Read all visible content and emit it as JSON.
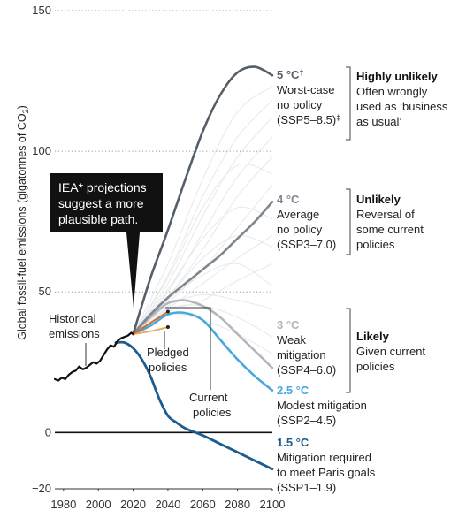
{
  "chart_data": {
    "type": "line",
    "title": "",
    "xlabel": "",
    "ylabel": "Global fossil-fuel emissions (gigatonnes of CO",
    "ylabel_sub": "2",
    "ylabel_close": ")",
    "xlim": [
      1975,
      2100
    ],
    "ylim": [
      -20,
      150
    ],
    "x_ticks": [
      1980,
      2000,
      2020,
      2040,
      2060,
      2080,
      2100
    ],
    "x_tick_labels": [
      "1980",
      "2000",
      "2020",
      "2040",
      "2060",
      "2080",
      "2100"
    ],
    "y_ticks": [
      150,
      100,
      50,
      0,
      -20
    ],
    "y_tick_labels": [
      "150",
      "100",
      "50",
      "0",
      "−20"
    ],
    "grid": "dotted horizontal",
    "series": [
      {
        "key": "historical",
        "color": "#111111",
        "x": [
          1975,
          1977,
          1979,
          1981,
          1983,
          1985,
          1987,
          1989,
          1991,
          1993,
          1995,
          1997,
          1999,
          2001,
          2003,
          2005,
          2007,
          2009,
          2011,
          2013,
          2015,
          2017,
          2019,
          2020
        ],
        "y": [
          19,
          18.5,
          19.5,
          19,
          20.5,
          21.5,
          22,
          23.5,
          22.5,
          23,
          24,
          25,
          24.5,
          25.5,
          27.5,
          29.5,
          31,
          30.5,
          32.5,
          33.5,
          34,
          34.5,
          35.5,
          35
        ]
      },
      {
        "key": "ssp585",
        "color": "#555e69",
        "x": [
          2020,
          2030,
          2040,
          2050,
          2060,
          2070,
          2080,
          2090,
          2100
        ],
        "y": [
          35,
          55,
          72,
          90,
          107,
          120,
          128,
          130,
          127
        ]
      },
      {
        "key": "ssp370",
        "color": "#7f8791",
        "x": [
          2020,
          2030,
          2040,
          2050,
          2060,
          2070,
          2080,
          2090,
          2100
        ],
        "y": [
          35,
          42,
          48,
          53,
          58,
          63,
          69,
          75,
          82
        ]
      },
      {
        "key": "ssp460",
        "color": "#b3b7bd",
        "x": [
          2020,
          2030,
          2040,
          2050,
          2060,
          2070,
          2080,
          2090,
          2100
        ],
        "y": [
          35,
          41,
          46,
          47,
          45,
          41,
          35,
          29,
          23
        ]
      },
      {
        "key": "ssp245",
        "color": "#48a7dd",
        "x": [
          2020,
          2030,
          2040,
          2050,
          2060,
          2070,
          2080,
          2090,
          2100
        ],
        "y": [
          35,
          38,
          42,
          42.5,
          40,
          33,
          26,
          20,
          15
        ]
      },
      {
        "key": "ssp119",
        "color": "#1b5d91",
        "x": [
          2010,
          2015,
          2020,
          2025,
          2030,
          2035,
          2040,
          2045,
          2050,
          2060,
          2070,
          2080,
          2090,
          2100
        ],
        "y": [
          32,
          32,
          30,
          26,
          20,
          12,
          6,
          3.5,
          1.5,
          -1,
          -4,
          -7,
          -10,
          -13
        ]
      },
      {
        "key": "current",
        "color": "#e0631b",
        "x": [
          2020,
          2030,
          2040
        ],
        "y": [
          35,
          39,
          43
        ]
      },
      {
        "key": "pledged",
        "color": "#f0a24b",
        "x": [
          2020,
          2030,
          2040
        ],
        "y": [
          35,
          36,
          37.5
        ]
      }
    ],
    "background_scenarios": [
      [
        [
          2020,
          35
        ],
        [
          2040,
          60
        ],
        [
          2060,
          90
        ],
        [
          2080,
          114
        ],
        [
          2100,
          123
        ]
      ],
      [
        [
          2020,
          35
        ],
        [
          2040,
          56
        ],
        [
          2060,
          84
        ],
        [
          2080,
          105
        ],
        [
          2100,
          118
        ]
      ],
      [
        [
          2020,
          35
        ],
        [
          2040,
          53
        ],
        [
          2060,
          77
        ],
        [
          2080,
          98
        ],
        [
          2100,
          112
        ]
      ],
      [
        [
          2020,
          35
        ],
        [
          2040,
          50
        ],
        [
          2060,
          71
        ],
        [
          2080,
          91
        ],
        [
          2100,
          105
        ]
      ],
      [
        [
          2020,
          35
        ],
        [
          2040,
          48
        ],
        [
          2060,
          65
        ],
        [
          2080,
          84
        ],
        [
          2100,
          98
        ]
      ],
      [
        [
          2020,
          35
        ],
        [
          2040,
          46
        ],
        [
          2060,
          58
        ],
        [
          2080,
          73
        ],
        [
          2100,
          88
        ]
      ],
      [
        [
          2020,
          35
        ],
        [
          2040,
          44
        ],
        [
          2060,
          53
        ],
        [
          2080,
          62
        ],
        [
          2100,
          70
        ]
      ],
      [
        [
          2020,
          35
        ],
        [
          2040,
          43
        ],
        [
          2060,
          47
        ],
        [
          2080,
          54
        ],
        [
          2100,
          60
        ]
      ],
      [
        [
          2020,
          35
        ],
        [
          2040,
          45
        ],
        [
          2060,
          49
        ],
        [
          2080,
          47
        ],
        [
          2100,
          44
        ]
      ],
      [
        [
          2020,
          35
        ],
        [
          2040,
          44
        ],
        [
          2060,
          45
        ],
        [
          2080,
          41
        ],
        [
          2100,
          34
        ]
      ],
      [
        [
          2020,
          35
        ],
        [
          2040,
          42
        ],
        [
          2060,
          40
        ],
        [
          2080,
          35
        ],
        [
          2100,
          28
        ]
      ],
      [
        [
          2020,
          35
        ],
        [
          2040,
          48
        ],
        [
          2060,
          62
        ],
        [
          2080,
          70
        ],
        [
          2100,
          66
        ]
      ],
      [
        [
          2020,
          35
        ],
        [
          2040,
          51
        ],
        [
          2060,
          69
        ],
        [
          2080,
          80
        ],
        [
          2100,
          76
        ]
      ],
      [
        [
          2020,
          35
        ],
        [
          2040,
          47
        ],
        [
          2060,
          56
        ],
        [
          2080,
          60
        ],
        [
          2100,
          52
        ]
      ],
      [
        [
          2020,
          35
        ],
        [
          2040,
          55
        ],
        [
          2060,
          80
        ],
        [
          2080,
          95
        ],
        [
          2100,
          92
        ]
      ]
    ],
    "background_color": "#e7e8ea",
    "annotations": {
      "callout": [
        "IEA* projections",
        "suggest a more",
        "plausible path."
      ],
      "historical": [
        "Historical",
        "emissions"
      ],
      "pledged": [
        "Pledged",
        "policies"
      ],
      "current": [
        "Current",
        "policies"
      ]
    },
    "scenario_labels": [
      {
        "temp": "5 °C",
        "dagger": "†",
        "color": "#555e69",
        "lines": [
          "Worst-case",
          "no policy",
          "(SSP5–8.5)"
        ],
        "mark": "‡"
      },
      {
        "temp": "4 °C",
        "dagger": "",
        "color": "#7f8791",
        "lines": [
          "Average",
          "no policy",
          "(SSP3–7.0)"
        ],
        "mark": ""
      },
      {
        "temp": "3 °C",
        "dagger": "",
        "color": "#b3b7bd",
        "lines": [
          "Weak",
          "mitigation",
          "(SSP4–6.0)"
        ],
        "mark": ""
      },
      {
        "temp": "2.5 °C",
        "dagger": "",
        "color": "#48a7dd",
        "lines": [
          "Modest mitigation",
          "(SSP2–4.5)"
        ],
        "mark": ""
      },
      {
        "temp": "1.5 °C",
        "dagger": "",
        "color": "#1b5d91",
        "lines": [
          "Mitigation required",
          "to meet Paris goals",
          "(SSP1–1.9)"
        ],
        "mark": ""
      }
    ],
    "likelihood": [
      {
        "title": "Highly unlikely",
        "lines": [
          "Often wrongly",
          "used as ‘business",
          "as usual’"
        ]
      },
      {
        "title": "Unlikely",
        "lines": [
          "Reversal of",
          "some current",
          "policies"
        ]
      },
      {
        "title": "Likely",
        "lines": [
          "Given current",
          "policies"
        ]
      }
    ]
  }
}
